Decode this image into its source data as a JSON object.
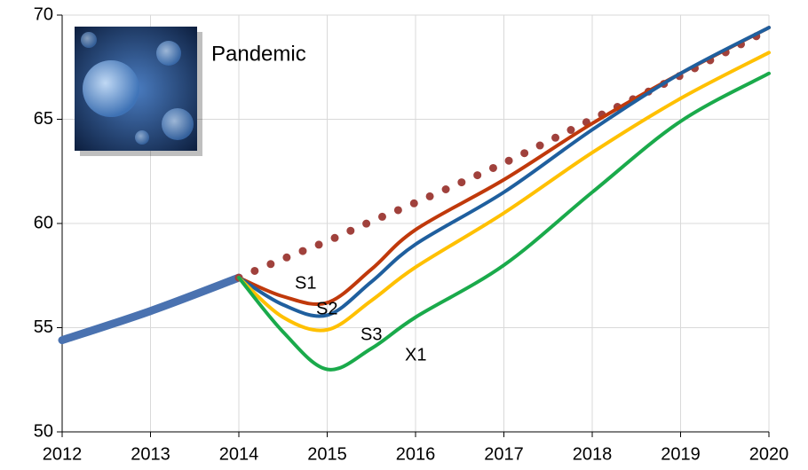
{
  "chart_data": {
    "type": "line",
    "annotation": "Pandemic",
    "x": [
      2012,
      2013,
      2014,
      2014.5,
      2015,
      2015.5,
      2016,
      2017,
      2018,
      2019,
      2020
    ],
    "xlim": [
      2012,
      2020
    ],
    "xticks": [
      2012,
      2013,
      2014,
      2015,
      2016,
      2017,
      2018,
      2019,
      2020
    ],
    "ylim": [
      50,
      70
    ],
    "yticks": [
      50,
      55,
      60,
      65,
      70
    ],
    "grid": true,
    "series": [
      {
        "color": "#4a72b0",
        "style": "thick",
        "values": [
          54.4,
          55.8,
          57.4,
          null,
          null,
          null,
          null,
          null,
          null,
          null,
          null
        ]
      },
      {
        "color": "#a0413c",
        "style": "dotted",
        "values": [
          null,
          null,
          57.4,
          58.3,
          59.15,
          60.1,
          61.0,
          62.9,
          65.0,
          67.1,
          69.3
        ]
      },
      {
        "name": "S1",
        "color": "#c0390b",
        "values": [
          null,
          null,
          57.4,
          56.5,
          56.2,
          57.8,
          59.7,
          62.1,
          64.8,
          67.2,
          69.4
        ]
      },
      {
        "name": "S2",
        "color": "#1f5f9e",
        "values": [
          null,
          null,
          57.4,
          56.1,
          55.6,
          57.2,
          59.0,
          61.5,
          64.5,
          67.2,
          69.4
        ]
      },
      {
        "name": "S3",
        "color": "#ffc000",
        "values": [
          null,
          null,
          57.4,
          55.5,
          54.9,
          56.3,
          57.9,
          60.5,
          63.4,
          66.0,
          68.2
        ]
      },
      {
        "name": "X1",
        "color": "#1aaa4b",
        "values": [
          null,
          null,
          57.4,
          54.8,
          53.0,
          54.0,
          55.5,
          58.0,
          61.5,
          64.9,
          67.2
        ]
      }
    ]
  }
}
